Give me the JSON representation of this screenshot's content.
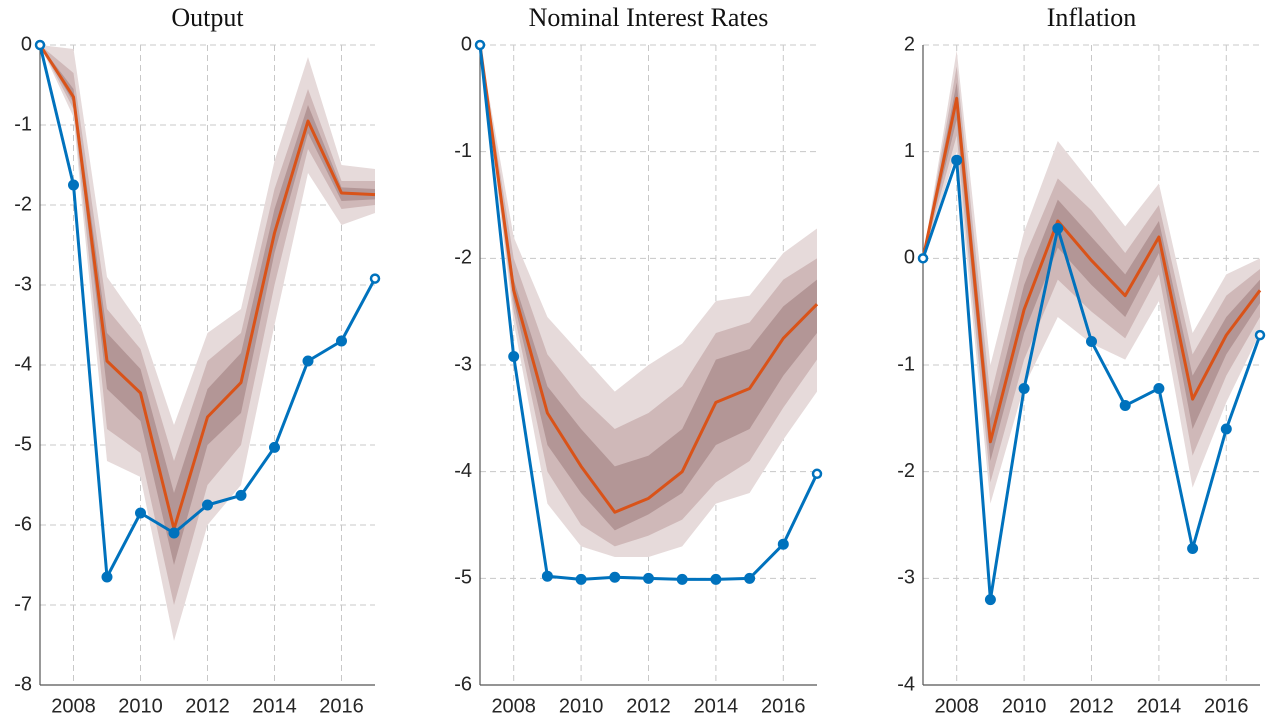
{
  "chart_data": [
    {
      "type": "line",
      "title": "Output",
      "x": [
        2007,
        2008,
        2009,
        2010,
        2011,
        2012,
        2013,
        2014,
        2015,
        2016,
        2017
      ],
      "xlim": [
        2007,
        2017
      ],
      "xticks": [
        2008,
        2010,
        2012,
        2014,
        2016
      ],
      "ylim": [
        -8,
        0
      ],
      "yticks": [
        -8,
        -7,
        -6,
        -5,
        -4,
        -3,
        -2,
        -1,
        0
      ],
      "grid": true,
      "bands": [
        {
          "color": "#e6dada",
          "lower": [
            0,
            -0.9,
            -5.2,
            -5.4,
            -7.45,
            -6.0,
            -5.5,
            -3.5,
            -1.6,
            -2.25,
            -2.1
          ],
          "upper": [
            0,
            -0.05,
            -2.9,
            -3.5,
            -4.75,
            -3.6,
            -3.3,
            -1.45,
            -0.15,
            -1.5,
            -1.55
          ]
        },
        {
          "color": "#cfb8b8",
          "lower": [
            0,
            -0.8,
            -4.8,
            -5.1,
            -7.0,
            -5.5,
            -5.0,
            -3.0,
            -1.3,
            -2.05,
            -2.0
          ],
          "upper": [
            0,
            -0.35,
            -3.3,
            -3.8,
            -5.2,
            -3.95,
            -3.6,
            -1.8,
            -0.55,
            -1.7,
            -1.7
          ]
        },
        {
          "color": "#b39696",
          "lower": [
            0,
            -0.72,
            -4.3,
            -4.7,
            -6.5,
            -5.0,
            -4.6,
            -2.6,
            -1.1,
            -1.95,
            -1.93
          ],
          "upper": [
            0,
            -0.55,
            -3.6,
            -4.05,
            -5.6,
            -4.3,
            -3.85,
            -2.05,
            -0.75,
            -1.78,
            -1.8
          ]
        }
      ],
      "series": [
        {
          "color": "#d95319",
          "values": [
            0,
            -0.65,
            -3.95,
            -4.35,
            -6.05,
            -4.65,
            -4.22,
            -2.35,
            -0.95,
            -1.85,
            -1.87
          ]
        },
        {
          "color": "#0072bd",
          "marker": "o",
          "values": [
            0,
            -1.75,
            -6.65,
            -5.85,
            -6.1,
            -5.75,
            -5.63,
            -5.03,
            -3.95,
            -3.7,
            -2.92
          ]
        }
      ]
    },
    {
      "type": "line",
      "title": "Nominal Interest Rates",
      "x": [
        2007,
        2008,
        2009,
        2010,
        2011,
        2012,
        2013,
        2014,
        2015,
        2016,
        2017
      ],
      "xlim": [
        2007,
        2017
      ],
      "xticks": [
        2008,
        2010,
        2012,
        2014,
        2016
      ],
      "ylim": [
        -6,
        0
      ],
      "yticks": [
        -6,
        -5,
        -4,
        -3,
        -2,
        -1,
        0
      ],
      "grid": true,
      "bands": [
        {
          "color": "#e6dada",
          "lower": [
            0,
            -2.6,
            -4.3,
            -4.7,
            -4.8,
            -4.8,
            -4.7,
            -4.3,
            -4.2,
            -3.7,
            -3.25
          ],
          "upper": [
            0,
            -1.8,
            -2.55,
            -2.9,
            -3.25,
            -3.0,
            -2.8,
            -2.4,
            -2.35,
            -1.95,
            -1.72
          ]
        },
        {
          "color": "#cfb8b8",
          "lower": [
            0,
            -2.5,
            -4.0,
            -4.5,
            -4.7,
            -4.6,
            -4.45,
            -4.1,
            -3.9,
            -3.4,
            -2.95
          ],
          "upper": [
            0,
            -2.0,
            -2.9,
            -3.3,
            -3.6,
            -3.45,
            -3.2,
            -2.7,
            -2.6,
            -2.2,
            -2.0
          ]
        },
        {
          "color": "#b39696",
          "lower": [
            0,
            -2.4,
            -3.75,
            -4.2,
            -4.55,
            -4.4,
            -4.2,
            -3.75,
            -3.6,
            -3.1,
            -2.7
          ],
          "upper": [
            0,
            -2.2,
            -3.2,
            -3.6,
            -3.95,
            -3.85,
            -3.6,
            -2.95,
            -2.85,
            -2.45,
            -2.2
          ]
        }
      ],
      "series": [
        {
          "color": "#d95319",
          "values": [
            0,
            -2.3,
            -3.45,
            -3.95,
            -4.38,
            -4.25,
            -4.0,
            -3.35,
            -3.22,
            -2.75,
            -2.43
          ]
        },
        {
          "color": "#0072bd",
          "marker": "o",
          "values": [
            0,
            -2.92,
            -4.98,
            -5.01,
            -4.99,
            -5.0,
            -5.01,
            -5.01,
            -5.0,
            -4.68,
            -4.02
          ]
        }
      ]
    },
    {
      "type": "line",
      "title": "Inflation",
      "x": [
        2007,
        2008,
        2009,
        2010,
        2011,
        2012,
        2013,
        2014,
        2015,
        2016,
        2017
      ],
      "xlim": [
        2007,
        2017
      ],
      "xticks": [
        2008,
        2010,
        2012,
        2014,
        2016
      ],
      "ylim": [
        -4,
        2
      ],
      "yticks": [
        -4,
        -3,
        -2,
        -1,
        0,
        1,
        2
      ],
      "grid": true,
      "bands": [
        {
          "color": "#e6dada",
          "lower": [
            0,
            1.0,
            -2.3,
            -1.2,
            -0.55,
            -0.8,
            -0.95,
            -0.4,
            -2.15,
            -1.35,
            -0.7
          ],
          "upper": [
            0,
            1.95,
            -1.0,
            0.25,
            1.1,
            0.7,
            0.3,
            0.7,
            -0.7,
            -0.15,
            0.0
          ]
        },
        {
          "color": "#cfb8b8",
          "lower": [
            0,
            1.15,
            -2.1,
            -0.95,
            -0.2,
            -0.5,
            -0.75,
            -0.15,
            -1.85,
            -1.1,
            -0.55
          ],
          "upper": [
            0,
            1.8,
            -1.3,
            0.0,
            0.75,
            0.45,
            0.05,
            0.5,
            -0.9,
            -0.35,
            -0.1
          ]
        },
        {
          "color": "#b39696",
          "lower": [
            0,
            1.3,
            -1.9,
            -0.7,
            0.1,
            -0.25,
            -0.55,
            0.05,
            -1.6,
            -0.9,
            -0.42
          ],
          "upper": [
            0,
            1.65,
            -1.5,
            -0.25,
            0.55,
            0.2,
            -0.15,
            0.35,
            -1.1,
            -0.55,
            -0.2
          ]
        }
      ],
      "series": [
        {
          "color": "#d95319",
          "values": [
            0,
            1.5,
            -1.72,
            -0.48,
            0.35,
            -0.02,
            -0.35,
            0.2,
            -1.32,
            -0.72,
            -0.3
          ]
        },
        {
          "color": "#0072bd",
          "marker": "o",
          "values": [
            0,
            0.92,
            -3.2,
            -1.22,
            0.28,
            -0.78,
            -1.38,
            -1.22,
            -2.72,
            -1.6,
            -0.72
          ]
        }
      ]
    }
  ]
}
